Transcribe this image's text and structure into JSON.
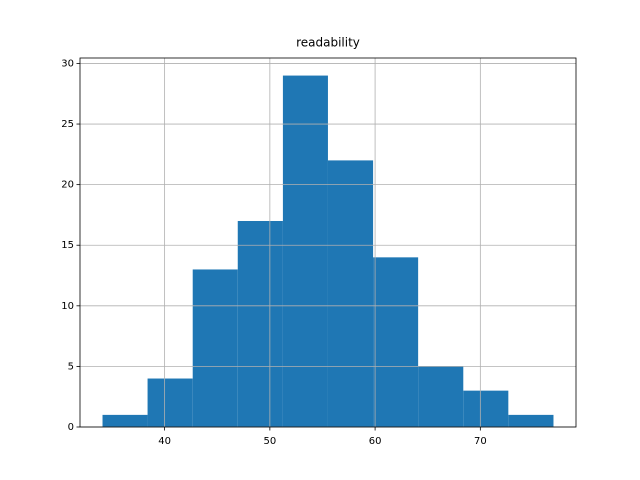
{
  "chart_data": {
    "type": "histogram",
    "title": "readability",
    "bins": [
      34.1,
      38.38,
      42.67,
      46.95,
      51.24,
      55.52,
      59.81,
      64.09,
      68.38,
      72.66,
      76.95
    ],
    "values": [
      1,
      4,
      13,
      17,
      29,
      22,
      14,
      5,
      3,
      1
    ],
    "color": "#1f77b4",
    "xlim": [
      31.96,
      79.09
    ],
    "xticks": [
      40,
      50,
      60,
      70
    ],
    "ylim": [
      0,
      30.45
    ],
    "yticks": [
      0,
      5,
      10,
      15,
      20,
      25,
      30
    ],
    "grid": true
  }
}
